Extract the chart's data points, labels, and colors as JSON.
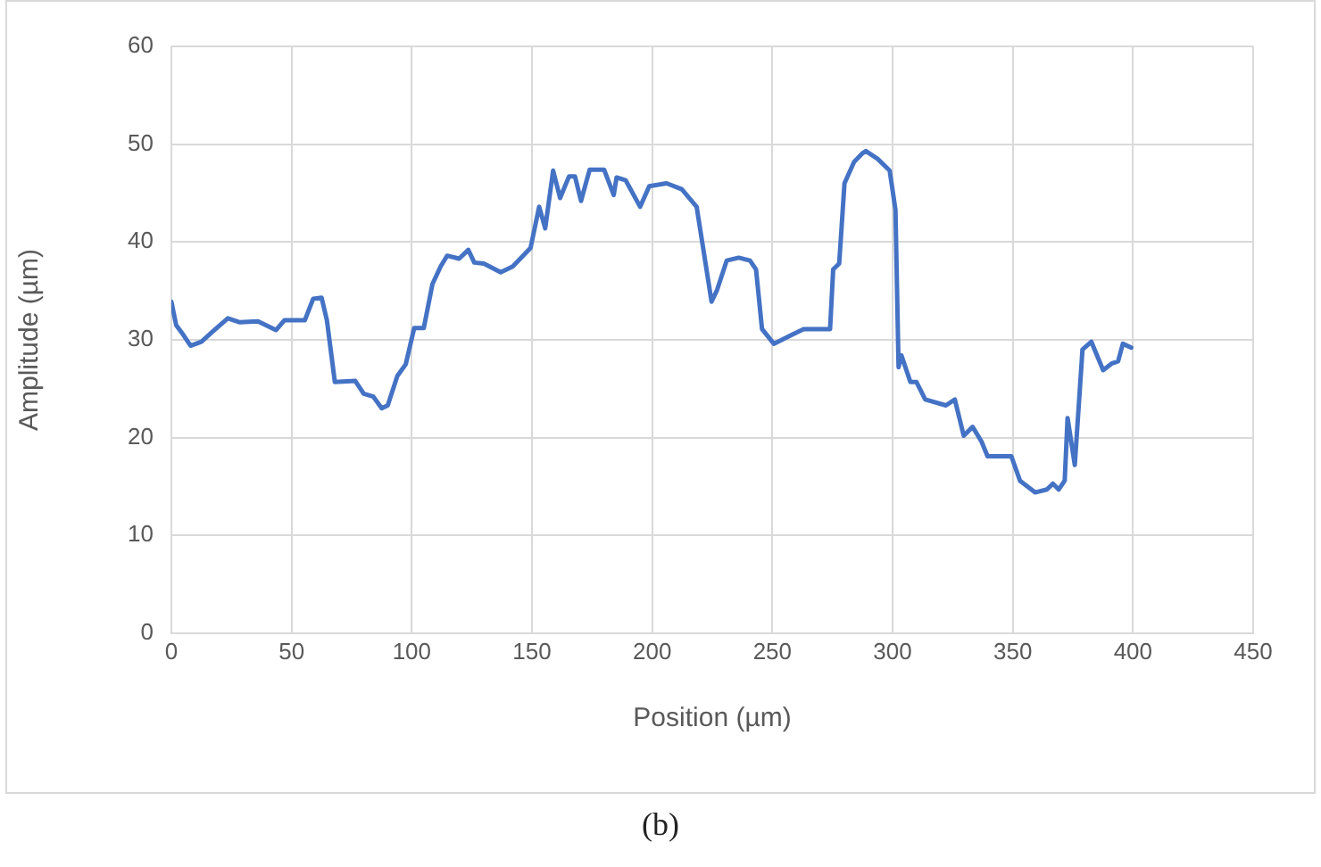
{
  "chart_data": {
    "type": "line",
    "xlabel": "Position (µm)",
    "ylabel": "Amplitude (µm)",
    "annotations": [
      "(b)"
    ],
    "xlim": [
      0,
      450
    ],
    "xticks": [
      0,
      50,
      100,
      150,
      200,
      250,
      300,
      350,
      400,
      450
    ],
    "ylim": [
      0,
      60
    ],
    "yticks": [
      0,
      10,
      20,
      30,
      40,
      50,
      60
    ],
    "grid": true,
    "legend": false,
    "marker": "none",
    "line_style": "solid",
    "series": [
      {
        "color": "#4472c4",
        "x": [
          0,
          2,
          5,
          8,
          12.5,
          17,
          23.5,
          28.5,
          36,
          41,
          43.5,
          47,
          55.5,
          59,
          62.5,
          64.7,
          68,
          76.5,
          80,
          84,
          87.5,
          90,
          94,
          97.5,
          101,
          105,
          108.6,
          112,
          114.7,
          119.7,
          123.5,
          126,
          130,
          137,
          142,
          149.4,
          153,
          155.5,
          158.8,
          161.7,
          165.4,
          167.9,
          170.4,
          174,
          180,
          184,
          185.2,
          189,
          195,
          198.8,
          206,
          212.3,
          218.5,
          221,
          224.7,
          227,
          231,
          236,
          240.7,
          243.2,
          245.7,
          250.6,
          258,
          263,
          270,
          274,
          275.3,
          277.8,
          280,
          284,
          287.6,
          288.9,
          293.8,
          298.8,
          301.2,
          302.5,
          303.7,
          307.4,
          309.9,
          313.6,
          322.2,
          325.9,
          329.6,
          333.3,
          337,
          339.5,
          349.4,
          353,
          359.3,
          364.2,
          366.7,
          369.1,
          371.6,
          372.8,
          375.8,
          379,
          382.7,
          387.6,
          391.3,
          393.8,
          395.8,
          399.3
        ],
        "values": [
          33.9,
          31.5,
          30.5,
          29.4,
          29.8,
          30.8,
          32.2,
          31.8,
          31.9,
          31.3,
          31.0,
          32.0,
          32.0,
          34.2,
          34.3,
          32.0,
          25.7,
          25.8,
          24.5,
          24.2,
          23.0,
          23.3,
          26.3,
          27.5,
          31.2,
          31.2,
          35.7,
          37.5,
          38.6,
          38.3,
          39.2,
          37.9,
          37.8,
          36.9,
          37.5,
          39.4,
          43.6,
          41.4,
          47.3,
          44.5,
          46.7,
          46.7,
          44.2,
          47.4,
          47.4,
          44.8,
          46.6,
          46.3,
          43.6,
          45.7,
          46.0,
          45.4,
          43.6,
          39.7,
          33.9,
          35.1,
          38.1,
          38.4,
          38.1,
          37.2,
          31.1,
          29.6,
          30.5,
          31.1,
          31.1,
          31.1,
          37.2,
          37.8,
          46.0,
          48.2,
          49.1,
          49.3,
          48.5,
          47.3,
          43.3,
          27.2,
          28.4,
          25.7,
          25.7,
          23.9,
          23.3,
          23.9,
          20.2,
          21.1,
          19.6,
          18.1,
          18.1,
          15.6,
          14.4,
          14.7,
          15.3,
          14.7,
          15.6,
          22.0,
          17.2,
          29.0,
          29.8,
          26.9,
          27.6,
          27.8,
          29.6,
          29.2
        ]
      }
    ]
  }
}
